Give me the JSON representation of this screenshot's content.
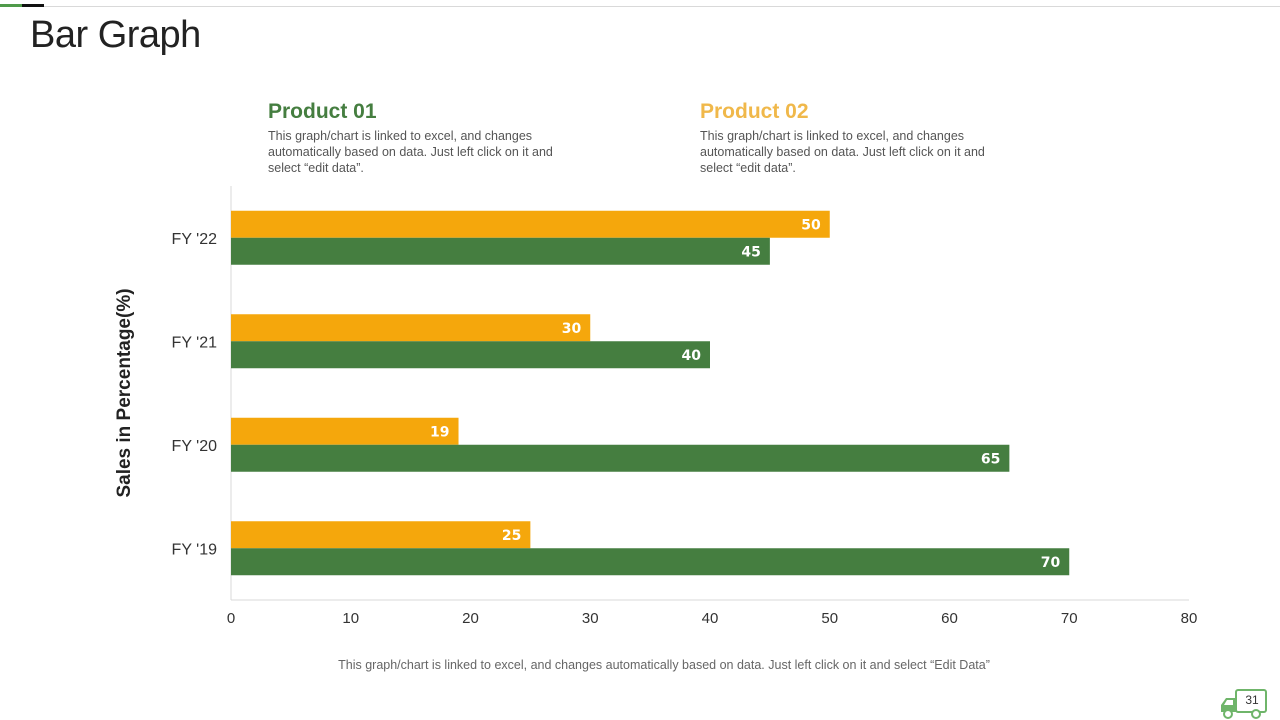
{
  "slide": {
    "title": "Bar Graph",
    "footnote": "This graph/chart is linked to excel, and changes automatically based on data. Just left click on it and select “Edit Data”",
    "page_number": "31"
  },
  "legend": [
    {
      "name": "Product 01",
      "color": "#457e40",
      "description": "This graph/chart is linked to excel, and changes automatically based on data. Just left click on it and select “edit data”."
    },
    {
      "name": "Product 02",
      "color": "#f0b84a",
      "description": "This graph/chart is linked to excel, and changes automatically based on data. Just left click on it and select “edit data”."
    }
  ],
  "chart_data": {
    "type": "bar",
    "orientation": "horizontal",
    "title": "Bar Graph",
    "xlabel": "",
    "ylabel": "Sales in Percentage(%)",
    "categories": [
      "FY '22",
      "FY '21",
      "FY '20",
      "FY '19"
    ],
    "series": [
      {
        "name": "Product 02",
        "color": "#f5a70c",
        "values": [
          50,
          30,
          19,
          25
        ]
      },
      {
        "name": "Product 01",
        "color": "#457e40",
        "values": [
          45,
          40,
          65,
          70
        ]
      }
    ],
    "xlim": [
      0,
      80
    ],
    "xticks": [
      0,
      10,
      20,
      30,
      40,
      50,
      60,
      70,
      80
    ],
    "grid": false,
    "data_labels": true
  }
}
